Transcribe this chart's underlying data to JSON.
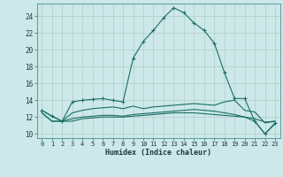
{
  "xlabel": "Humidex (Indice chaleur)",
  "xlim": [
    -0.5,
    23.5
  ],
  "ylim": [
    9.5,
    25.5
  ],
  "xticks": [
    0,
    1,
    2,
    3,
    4,
    5,
    6,
    7,
    8,
    9,
    10,
    11,
    12,
    13,
    14,
    15,
    16,
    17,
    18,
    19,
    20,
    21,
    22,
    23
  ],
  "yticks": [
    10,
    12,
    14,
    16,
    18,
    20,
    22,
    24
  ],
  "bg_color": "#cce8e8",
  "line_color": "#1a6e64",
  "grid_color": "#b0cecc",
  "lines": [
    {
      "x": [
        0,
        1,
        2,
        3,
        4,
        5,
        6,
        7,
        8,
        9,
        10,
        11,
        12,
        13,
        14,
        15,
        16,
        17,
        18,
        19,
        20,
        21,
        22,
        23
      ],
      "y": [
        12.8,
        12.1,
        11.5,
        13.8,
        14.0,
        14.1,
        14.2,
        14.0,
        13.8,
        19.0,
        21.0,
        22.3,
        23.8,
        25.0,
        24.4,
        23.2,
        22.3,
        20.8,
        17.3,
        14.2,
        14.2,
        11.5,
        10.0,
        11.3
      ],
      "marker": "+"
    },
    {
      "x": [
        0,
        1,
        2,
        3,
        4,
        5,
        6,
        7,
        8,
        9,
        10,
        11,
        12,
        13,
        14,
        15,
        16,
        17,
        18,
        19,
        20,
        21,
        22,
        23
      ],
      "y": [
        12.8,
        12.1,
        11.5,
        12.5,
        12.8,
        13.0,
        13.1,
        13.2,
        13.0,
        13.3,
        13.0,
        13.2,
        13.3,
        13.4,
        13.5,
        13.6,
        13.5,
        13.4,
        13.8,
        14.0,
        12.8,
        12.6,
        11.3,
        11.5
      ],
      "marker": null
    },
    {
      "x": [
        0,
        1,
        2,
        3,
        4,
        5,
        6,
        7,
        8,
        9,
        10,
        11,
        12,
        13,
        14,
        15,
        16,
        17,
        18,
        19,
        20,
        21,
        22,
        23
      ],
      "y": [
        12.5,
        11.5,
        11.5,
        11.8,
        12.0,
        12.1,
        12.2,
        12.2,
        12.1,
        12.3,
        12.4,
        12.5,
        12.6,
        12.7,
        12.8,
        12.9,
        12.8,
        12.7,
        12.5,
        12.3,
        12.0,
        11.8,
        11.4,
        11.5
      ],
      "marker": null
    },
    {
      "x": [
        0,
        1,
        2,
        3,
        4,
        5,
        6,
        7,
        8,
        9,
        10,
        11,
        12,
        13,
        14,
        15,
        16,
        17,
        18,
        19,
        20,
        21,
        22,
        23
      ],
      "y": [
        12.5,
        11.5,
        11.5,
        11.5,
        11.8,
        11.9,
        12.0,
        12.0,
        12.0,
        12.1,
        12.2,
        12.3,
        12.4,
        12.5,
        12.5,
        12.5,
        12.4,
        12.3,
        12.2,
        12.1,
        12.0,
        11.5,
        10.0,
        11.2
      ],
      "marker": null
    }
  ]
}
